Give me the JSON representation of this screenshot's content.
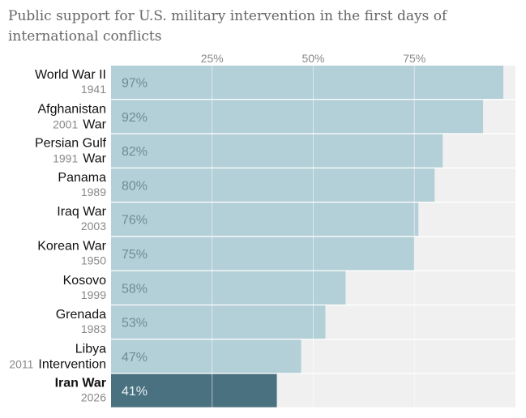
{
  "chart_data": {
    "type": "bar",
    "orientation": "horizontal",
    "title": "Public support for U.S. military intervention in the first days of international conflicts",
    "xlim": [
      0,
      100
    ],
    "xticks": [
      "25%",
      "50%",
      "75%"
    ],
    "xtick_values": [
      25,
      50,
      75
    ],
    "grid": true,
    "categories": [
      {
        "name": [
          "World War II"
        ],
        "year": "1941",
        "value": 97,
        "label": "97%"
      },
      {
        "name": [
          "Afghanistan",
          "War"
        ],
        "year": "2001",
        "value": 92,
        "label": "92%"
      },
      {
        "name": [
          "Persian Gulf",
          "War"
        ],
        "year": "1991",
        "value": 82,
        "label": "82%"
      },
      {
        "name": [
          "Panama"
        ],
        "year": "1989",
        "value": 80,
        "label": "80%"
      },
      {
        "name": [
          "Iraq War"
        ],
        "year": "2003",
        "value": 76,
        "label": "76%"
      },
      {
        "name": [
          "Korean War"
        ],
        "year": "1950",
        "value": 75,
        "label": "75%"
      },
      {
        "name": [
          "Kosovo"
        ],
        "year": "1999",
        "value": 58,
        "label": "58%"
      },
      {
        "name": [
          "Grenada"
        ],
        "year": "1983",
        "value": 53,
        "label": "53%"
      },
      {
        "name": [
          "Libya",
          "Intervention"
        ],
        "year": "2011",
        "value": 47,
        "label": "47%"
      },
      {
        "name": [
          "Iran War"
        ],
        "year": "2026",
        "value": 41,
        "label": "41%",
        "highlight": true
      }
    ],
    "colors": {
      "bar": "#b3cfd7",
      "highlight": "#4a717f",
      "track": "#f0f0f0",
      "grid": "#ffffff"
    }
  }
}
